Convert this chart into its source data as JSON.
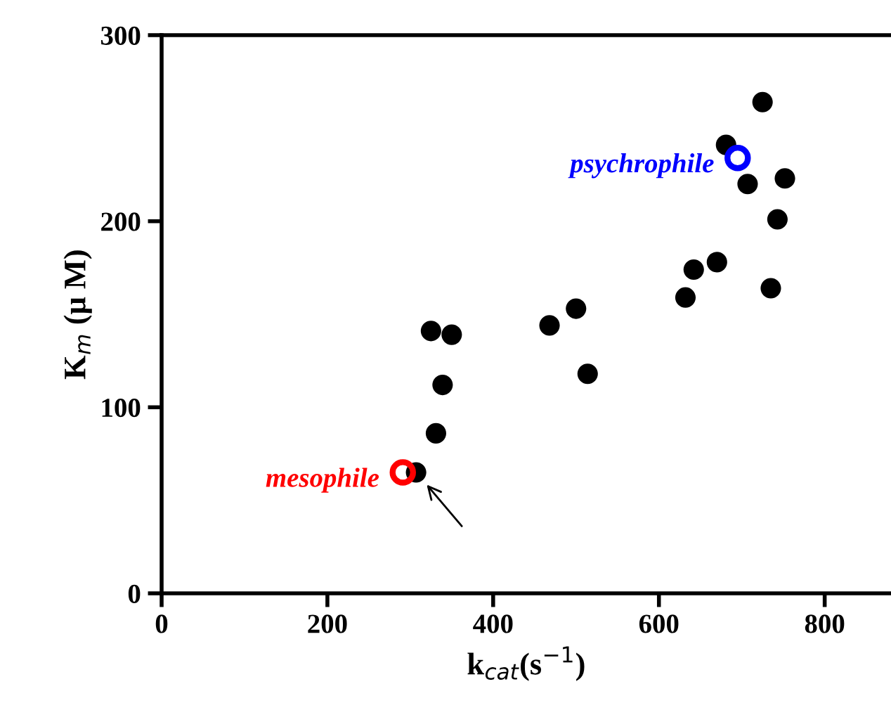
{
  "chart_data": {
    "type": "scatter",
    "xlabel": "k$_{cat}$(s$^{ −1}$)",
    "ylabel": "K$_{m}$ (μ M)",
    "xlim": [
      0,
      880
    ],
    "xticks": [
      0,
      200,
      400,
      600,
      800
    ],
    "ylim": [
      0,
      300
    ],
    "yticks": [
      0,
      100,
      200,
      300
    ],
    "grid": false,
    "legend": false,
    "marker": "circle",
    "series": [
      {
        "color": "#000000",
        "x": [
          307,
          331,
          339,
          325,
          350,
          468,
          500,
          514,
          632,
          642,
          670,
          681,
          707,
          725,
          735,
          743,
          752
        ],
        "values": [
          65,
          86,
          112,
          141,
          139,
          144,
          153,
          118,
          159,
          174,
          178,
          241,
          220,
          264,
          164,
          201,
          223
        ]
      },
      {
        "name": "mesophile",
        "color": "#ff0000",
        "x": [
          291
        ],
        "values": [
          65
        ]
      },
      {
        "name": "psychrophile",
        "color": "#0000ff",
        "x": [
          695
        ],
        "values": [
          234
        ]
      }
    ]
  }
}
